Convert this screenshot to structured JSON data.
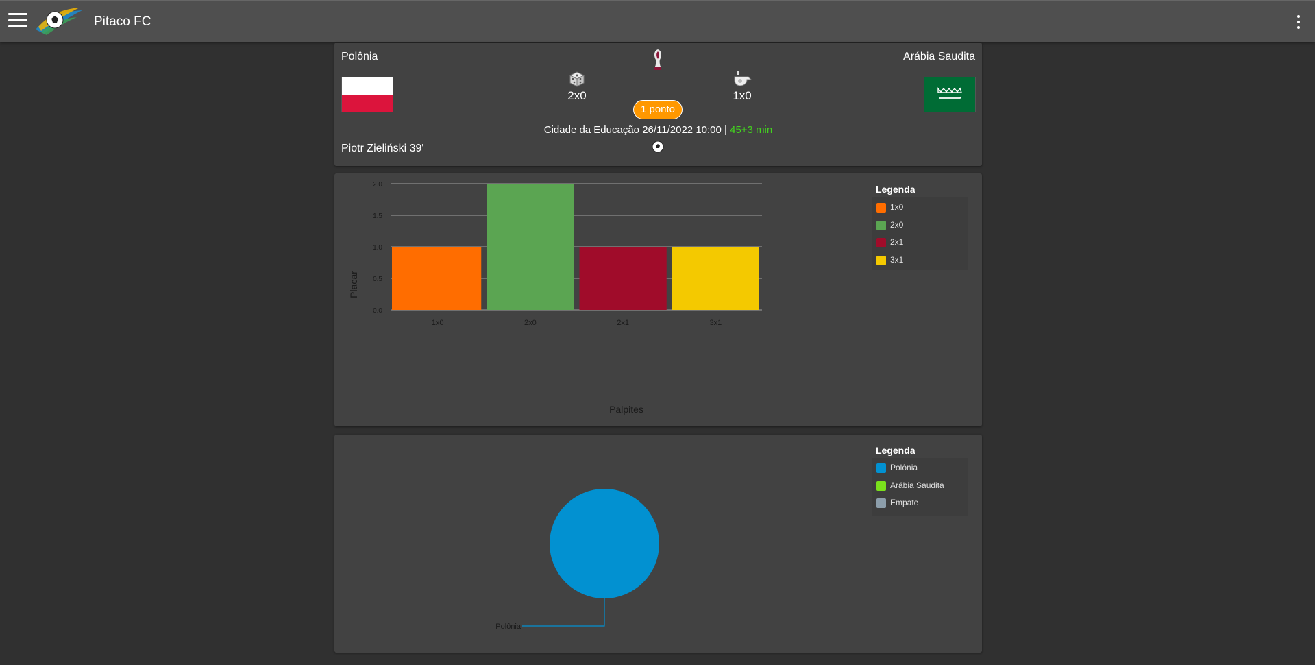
{
  "app": {
    "title": "Pitaco FC"
  },
  "match": {
    "home_team": "Polônia",
    "away_team": "Arábia Saudita",
    "guess_score": "2x0",
    "real_score": "1x0",
    "points_badge": "1 ponto",
    "venue_datetime": "Cidade da Educação 26/11/2022 10:00",
    "separator": "|",
    "match_time": "45+3 min",
    "scorer": "Piotr Zieliński 39'",
    "colors": {
      "badge": "#ff9800",
      "match_time": "#43d21f"
    },
    "icons": {
      "tournament": "world-cup-trophy-icon",
      "guess": "dice-icon",
      "result": "whistle-icon",
      "goal": "soccer-ball-icon"
    }
  },
  "bar_legend": {
    "title": "Legenda",
    "items": [
      {
        "label": "1x0",
        "color": "#ff6d00"
      },
      {
        "label": "2x0",
        "color": "#5ba552"
      },
      {
        "label": "2x1",
        "color": "#a00c2a"
      },
      {
        "label": "3x1",
        "color": "#f4c900"
      }
    ]
  },
  "pie_legend": {
    "title": "Legenda",
    "items": [
      {
        "label": "Polônia",
        "color": "#0291d1"
      },
      {
        "label": "Arábia Saudita",
        "color": "#7ae01c"
      },
      {
        "label": "Empate",
        "color": "#8c9eab"
      }
    ]
  },
  "chart_data": [
    {
      "type": "bar",
      "categories": [
        "1x0",
        "2x0",
        "2x1",
        "3x1"
      ],
      "values": [
        1,
        2,
        1,
        1
      ],
      "colors": [
        "#ff6d00",
        "#5ba552",
        "#a00c2a",
        "#f4c900"
      ],
      "xlabel": "Palpites",
      "ylabel": "Placar",
      "ylim": [
        0,
        2
      ],
      "yticks": [
        "0.0",
        "0.5",
        "1.0",
        "1.5",
        "2.0"
      ],
      "grid": true,
      "legend": "right"
    },
    {
      "type": "pie",
      "labels": [
        "Polônia"
      ],
      "values": [
        1
      ],
      "colors": [
        "#0291d1"
      ],
      "legend": "right"
    }
  ]
}
